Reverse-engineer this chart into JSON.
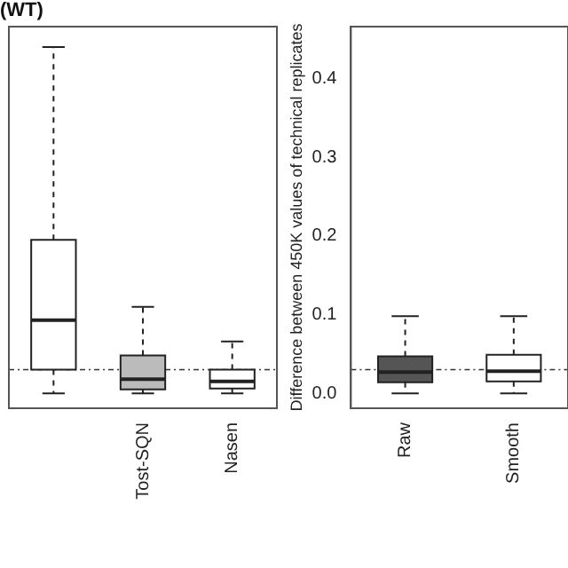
{
  "chart_data": [
    {
      "type": "box",
      "title": "(WT)",
      "categories": [
        null,
        "Tost-SQN",
        "Nasen"
      ],
      "colors": [
        "#ffffff",
        "#bbbbbb",
        "#ffffff"
      ],
      "tick_labels": "x",
      "ylim": [
        -0.019,
        0.466
      ],
      "grid": false,
      "boxes": [
        {
          "low": 0.0,
          "q1": 0.03,
          "median": 0.093,
          "q3": 0.195,
          "high": 0.44
        },
        {
          "low": 0.0,
          "q1": 0.005,
          "median": 0.018,
          "q3": 0.048,
          "high": 0.11
        },
        {
          "low": 0.0,
          "q1": 0.006,
          "median": 0.015,
          "q3": 0.03,
          "high": 0.066
        }
      ],
      "ref_lines": [
        {
          "axis": "y",
          "value": 0.03,
          "line_style": "dashed"
        }
      ]
    },
    {
      "type": "box",
      "ylabel": "Difference between 450K values of technical replicates",
      "categories": [
        "Raw",
        "Smooth"
      ],
      "colors": [
        "#555555",
        "#ffffff"
      ],
      "ylim": [
        -0.019,
        0.466
      ],
      "grid": false,
      "yticks": [
        {
          "value": 0,
          "label": "0.0"
        },
        {
          "value": 0.1,
          "label": "0.1"
        },
        {
          "value": 0.2,
          "label": "0.2"
        },
        {
          "value": 0.3,
          "label": "0.3"
        },
        {
          "value": 0.4,
          "label": "0.4"
        }
      ],
      "boxes": [
        {
          "low": 0.0,
          "q1": 0.014,
          "median": 0.027,
          "q3": 0.047,
          "high": 0.098
        },
        {
          "low": 0.0,
          "q1": 0.015,
          "median": 0.028,
          "q3": 0.049,
          "high": 0.098
        }
      ],
      "ref_lines": [
        {
          "axis": "y",
          "value": 0.03,
          "line_style": "dashed"
        }
      ]
    }
  ]
}
